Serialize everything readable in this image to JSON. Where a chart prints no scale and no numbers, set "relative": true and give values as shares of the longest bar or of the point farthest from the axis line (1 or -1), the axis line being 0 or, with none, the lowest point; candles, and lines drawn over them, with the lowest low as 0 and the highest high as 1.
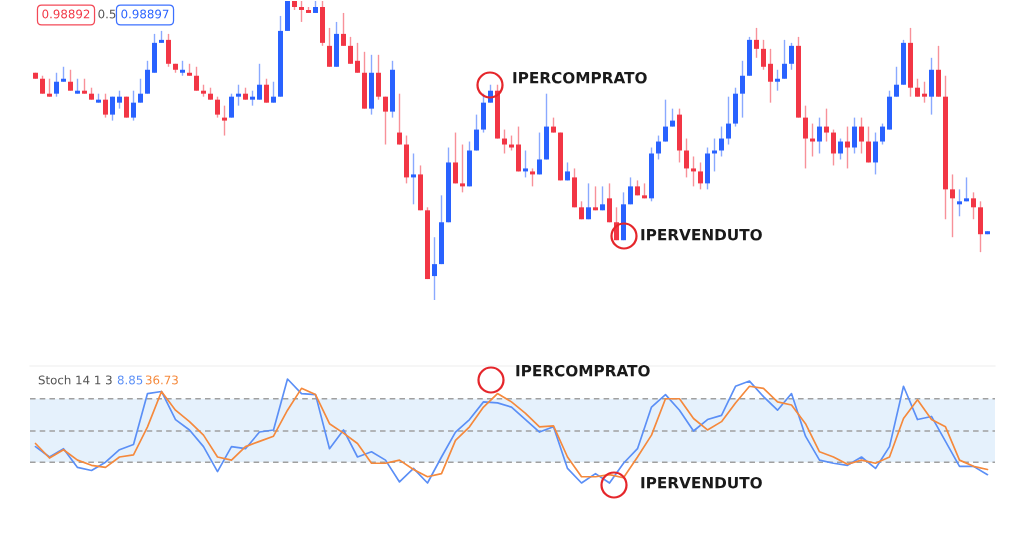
{
  "chart_data": [
    {
      "type": "candlestick",
      "relative": true,
      "tick_labels": false,
      "categories": [
        null,
        null,
        null,
        null,
        null,
        null,
        null,
        null,
        null,
        null,
        null,
        null,
        null,
        null,
        null,
        null,
        null,
        null,
        null,
        null,
        null,
        null,
        null,
        null,
        null,
        null,
        null,
        null,
        null,
        null,
        null,
        null,
        null,
        null,
        null,
        null,
        null,
        null,
        null,
        null,
        null,
        null,
        null,
        null,
        null,
        null,
        null,
        null,
        null,
        null,
        null,
        null,
        null,
        null,
        null,
        null,
        null,
        null,
        null,
        null,
        null,
        null,
        null,
        null,
        null,
        null,
        null,
        null,
        null,
        null,
        null,
        null,
        null,
        null,
        null,
        null,
        null,
        null,
        null,
        null,
        null,
        null,
        null,
        null,
        null,
        null,
        null,
        null,
        null,
        null,
        null,
        null,
        null,
        null,
        null,
        null,
        null,
        null,
        null,
        null,
        null,
        null,
        null,
        null,
        null,
        null,
        null,
        null,
        null,
        null,
        null,
        null,
        null,
        null,
        null,
        null,
        null,
        null,
        null,
        null,
        null,
        null,
        null,
        null,
        null,
        null,
        null,
        null,
        null,
        null,
        null,
        null,
        null,
        null,
        null,
        null,
        null
      ],
      "colors": [
        "#f23645",
        "#f23645",
        "#f23645",
        "#2962ff",
        "#2962ff",
        "#f23645",
        "#2962ff",
        "#f23645",
        "#f23645",
        "#2962ff",
        "#f23645",
        "#2962ff",
        "#2962ff",
        "#f23645",
        "#2962ff",
        "#2962ff",
        "#2962ff",
        "#2962ff",
        "#2962ff",
        "#f23645",
        "#f23645",
        "#2962ff",
        "#f23645",
        "#f23645",
        "#f23645",
        "#f23645",
        "#f23645",
        "#f23645",
        "#2962ff",
        "#2962ff",
        "#f23645",
        "#2962ff",
        "#2962ff",
        "#f23645",
        "#2962ff",
        "#2962ff",
        "#2962ff",
        "#f23645",
        "#f23645",
        "#f23645",
        "#2962ff",
        "#f23645",
        "#f23645",
        "#2962ff",
        "#f23645",
        "#f23645",
        "#f23645",
        "#f23645",
        "#2962ff",
        "#f23645",
        "#f23645",
        "#2962ff",
        "#f23645",
        "#f23645",
        "#2962ff",
        "#f23645",
        "#f23645",
        "#2962ff",
        "#2962ff",
        "#2962ff",
        "#f23645",
        "#f23645",
        "#2962ff",
        "#2962ff",
        "#2962ff",
        "#2962ff",
        "#f23645",
        "#f23645",
        "#f23645",
        "#f23645",
        "#2962ff",
        "#f23645",
        "#2962ff",
        "#2962ff",
        "#f23645",
        "#f23645",
        "#2962ff",
        "#f23645",
        "#f23645",
        "#2962ff",
        "#f23645",
        "#2962ff",
        "#f23645",
        "#f23645",
        "#2962ff",
        "#2962ff",
        "#f23645",
        "#f23645",
        "#2962ff",
        "#2962ff",
        "#2962ff",
        "#2962ff",
        "#f23645",
        "#f23645",
        "#f23645",
        "#f23645",
        "#2962ff",
        "#2962ff",
        "#2962ff",
        "#2962ff",
        "#2962ff",
        "#2962ff",
        "#2962ff",
        "#f23645",
        "#f23645",
        "#f23645",
        "#2962ff",
        "#2962ff",
        "#2962ff",
        "#f23645",
        "#f23645",
        "#f23645",
        "#2962ff",
        "#f23645",
        "#f23645",
        "#2962ff",
        "#f23645",
        "#2962ff",
        "#f23645",
        "#f23645",
        "#2962ff",
        "#2962ff",
        "#2962ff",
        "#2962ff",
        "#2962ff",
        "#f23645",
        "#f23645",
        "#f23645",
        "#2962ff",
        "#f23645",
        "#f23645",
        "#f23645",
        "#2962ff",
        "#2962ff",
        "#f23645",
        "#f23645",
        "#2962ff"
      ],
      "ohlc": [
        [
          0.76,
          0.76,
          0.74,
          0.74
        ],
        [
          0.74,
          0.75,
          0.69,
          0.69
        ],
        [
          0.69,
          0.74,
          0.68,
          0.68
        ],
        [
          0.69,
          0.76,
          0.68,
          0.73
        ],
        [
          0.73,
          0.78,
          0.73,
          0.74
        ],
        [
          0.73,
          0.77,
          0.7,
          0.7
        ],
        [
          0.69,
          0.74,
          0.69,
          0.7
        ],
        [
          0.7,
          0.74,
          0.69,
          0.69
        ],
        [
          0.69,
          0.71,
          0.67,
          0.67
        ],
        [
          0.66,
          0.69,
          0.66,
          0.67
        ],
        [
          0.67,
          0.69,
          0.61,
          0.62
        ],
        [
          0.62,
          0.68,
          0.6,
          0.68
        ],
        [
          0.66,
          0.7,
          0.64,
          0.68
        ],
        [
          0.68,
          0.68,
          0.61,
          0.61
        ],
        [
          0.61,
          0.7,
          0.6,
          0.66
        ],
        [
          0.66,
          0.74,
          0.66,
          0.69
        ],
        [
          0.69,
          0.8,
          0.69,
          0.77
        ],
        [
          0.76,
          0.89,
          0.76,
          0.86
        ],
        [
          0.86,
          0.9,
          0.86,
          0.87
        ],
        [
          0.87,
          0.89,
          0.78,
          0.79
        ],
        [
          0.79,
          0.79,
          0.76,
          0.77
        ],
        [
          0.76,
          0.8,
          0.75,
          0.77
        ],
        [
          0.76,
          0.79,
          0.75,
          0.75
        ],
        [
          0.75,
          0.78,
          0.7,
          0.7
        ],
        [
          0.7,
          0.72,
          0.68,
          0.69
        ],
        [
          0.69,
          0.71,
          0.67,
          0.67
        ],
        [
          0.67,
          0.68,
          0.61,
          0.62
        ],
        [
          0.61,
          0.65,
          0.55,
          0.6
        ],
        [
          0.61,
          0.69,
          0.61,
          0.68
        ],
        [
          0.68,
          0.72,
          0.65,
          0.69
        ],
        [
          0.69,
          0.71,
          0.67,
          0.67
        ],
        [
          0.67,
          0.7,
          0.65,
          0.68
        ],
        [
          0.67,
          0.79,
          0.67,
          0.72
        ],
        [
          0.72,
          0.74,
          0.66,
          0.66
        ],
        [
          0.66,
          0.73,
          0.66,
          0.68
        ],
        [
          0.68,
          0.95,
          0.68,
          0.9
        ],
        [
          0.9,
          1,
          0.9,
          1
        ],
        [
          1,
          1,
          0.97,
          0.98
        ],
        [
          0.98,
          1,
          0.93,
          0.97
        ],
        [
          0.97,
          0.98,
          0.96,
          0.96
        ],
        [
          0.96,
          1,
          0.96,
          0.98
        ],
        [
          0.98,
          1,
          0.85,
          0.86
        ],
        [
          0.85,
          0.91,
          0.78,
          0.78
        ],
        [
          0.78,
          0.93,
          0.78,
          0.89
        ],
        [
          0.89,
          0.96,
          0.85,
          0.85
        ],
        [
          0.85,
          0.88,
          0.79,
          0.79
        ],
        [
          0.8,
          0.86,
          0.76,
          0.76
        ],
        [
          0.76,
          0.83,
          0.64,
          0.64
        ],
        [
          0.64,
          0.82,
          0.62,
          0.76
        ],
        [
          0.76,
          0.82,
          0.67,
          0.68
        ],
        [
          0.68,
          0.68,
          0.52,
          0.63
        ],
        [
          0.63,
          0.8,
          0.61,
          0.77
        ],
        [
          0.56,
          0.69,
          0.52,
          0.52
        ],
        [
          0.52,
          0.55,
          0.39,
          0.41
        ],
        [
          0.41,
          0.49,
          0.32,
          0.42
        ],
        [
          0.42,
          0.45,
          0.3,
          0.3
        ],
        [
          0.3,
          0.31,
          0.07,
          0.07
        ],
        [
          0.08,
          0.21,
          0,
          0.12
        ],
        [
          0.12,
          0.35,
          0.12,
          0.26
        ],
        [
          0.26,
          0.51,
          0.26,
          0.46
        ],
        [
          0.46,
          0.56,
          0.39,
          0.39
        ],
        [
          0.39,
          0.52,
          0.36,
          0.38
        ],
        [
          0.38,
          0.53,
          0.38,
          0.5
        ],
        [
          0.5,
          0.62,
          0.5,
          0.57
        ],
        [
          0.57,
          0.69,
          0.56,
          0.66
        ],
        [
          0.66,
          0.72,
          0.66,
          0.7
        ],
        [
          0.7,
          0.72,
          0.54,
          0.54
        ],
        [
          0.54,
          0.57,
          0.49,
          0.52
        ],
        [
          0.52,
          0.55,
          0.5,
          0.51
        ],
        [
          0.52,
          0.58,
          0.43,
          0.43
        ],
        [
          0.43,
          0.5,
          0.41,
          0.44
        ],
        [
          0.43,
          0.44,
          0.38,
          0.42
        ],
        [
          0.42,
          0.56,
          0.42,
          0.47
        ],
        [
          0.47,
          0.69,
          0.47,
          0.58
        ],
        [
          0.58,
          0.61,
          0.56,
          0.56
        ],
        [
          0.56,
          0.56,
          0.4,
          0.4
        ],
        [
          0.4,
          0.46,
          0.4,
          0.43
        ],
        [
          0.41,
          0.44,
          0.31,
          0.31
        ],
        [
          0.31,
          0.33,
          0.27,
          0.27
        ],
        [
          0.27,
          0.39,
          0.27,
          0.31
        ],
        [
          0.31,
          0.38,
          0.3,
          0.3
        ],
        [
          0.3,
          0.38,
          0.3,
          0.32
        ],
        [
          0.34,
          0.39,
          0.26,
          0.26
        ],
        [
          0.26,
          0.31,
          0.2,
          0.2
        ],
        [
          0.2,
          0.36,
          0.2,
          0.32
        ],
        [
          0.32,
          0.41,
          0.32,
          0.38
        ],
        [
          0.38,
          0.4,
          0.35,
          0.35
        ],
        [
          0.35,
          0.39,
          0.34,
          0.34
        ],
        [
          0.34,
          0.51,
          0.33,
          0.49
        ],
        [
          0.49,
          0.55,
          0.47,
          0.53
        ],
        [
          0.53,
          0.67,
          0.53,
          0.58
        ],
        [
          0.58,
          0.64,
          0.58,
          0.6
        ],
        [
          0.62,
          0.64,
          0.46,
          0.5
        ],
        [
          0.5,
          0.54,
          0.41,
          0.44
        ],
        [
          0.44,
          0.48,
          0.38,
          0.43
        ],
        [
          0.43,
          0.46,
          0.37,
          0.39
        ],
        [
          0.39,
          0.51,
          0.37,
          0.49
        ],
        [
          0.49,
          0.54,
          0.43,
          0.5
        ],
        [
          0.5,
          0.58,
          0.48,
          0.54
        ],
        [
          0.54,
          0.68,
          0.52,
          0.59
        ],
        [
          0.59,
          0.71,
          0.58,
          0.69
        ],
        [
          0.69,
          0.8,
          0.61,
          0.75
        ],
        [
          0.75,
          0.88,
          0.75,
          0.87
        ],
        [
          0.87,
          0.91,
          0.81,
          0.84
        ],
        [
          0.84,
          0.87,
          0.77,
          0.78
        ],
        [
          0.79,
          0.84,
          0.66,
          0.73
        ],
        [
          0.73,
          0.77,
          0.7,
          0.74
        ],
        [
          0.74,
          0.87,
          0.74,
          0.79
        ],
        [
          0.79,
          0.86,
          0.77,
          0.85
        ],
        [
          0.85,
          0.88,
          0.61,
          0.61
        ],
        [
          0.61,
          0.65,
          0.44,
          0.54
        ],
        [
          0.54,
          0.59,
          0.48,
          0.53
        ],
        [
          0.53,
          0.61,
          0.49,
          0.58
        ],
        [
          0.58,
          0.64,
          0.53,
          0.56
        ],
        [
          0.56,
          0.57,
          0.45,
          0.49
        ],
        [
          0.49,
          0.54,
          0.47,
          0.53
        ],
        [
          0.53,
          0.58,
          0.44,
          0.51
        ],
        [
          0.51,
          0.61,
          0.49,
          0.58
        ],
        [
          0.58,
          0.61,
          0.49,
          0.53
        ],
        [
          0.53,
          0.58,
          0.46,
          0.46
        ],
        [
          0.46,
          0.56,
          0.42,
          0.53
        ],
        [
          0.53,
          0.59,
          0.52,
          0.58
        ],
        [
          0.57,
          0.7,
          0.57,
          0.68
        ],
        [
          0.68,
          0.78,
          0.68,
          0.72
        ],
        [
          0.72,
          0.87,
          0.72,
          0.86
        ],
        [
          0.86,
          0.91,
          0.68,
          0.71
        ],
        [
          0.71,
          0.74,
          0.68,
          0.68
        ],
        [
          0.69,
          0.73,
          0.66,
          0.68
        ],
        [
          0.68,
          0.81,
          0.62,
          0.77
        ],
        [
          0.77,
          0.85,
          0.68,
          0.68
        ],
        [
          0.68,
          0.75,
          0.27,
          0.37
        ],
        [
          0.37,
          0.42,
          0.21,
          0.34
        ],
        [
          0.32,
          0.37,
          0.28,
          0.33
        ],
        [
          0.33,
          0.41,
          0.33,
          0.34
        ],
        [
          0.34,
          0.36,
          0.27,
          0.31
        ],
        [
          0.31,
          0.33,
          0.16,
          0.22
        ],
        [
          0.22,
          0.23,
          0.22,
          0.23
        ]
      ],
      "annotations": [
        "0.98892",
        "0.5",
        "0.98897",
        "IPERCOMPRATO",
        "IPERVENDUTO"
      ]
    },
    {
      "type": "line",
      "relative": true,
      "tick_labels": false,
      "title": "Stoch 14 1 3",
      "categories": [
        null,
        null,
        null,
        null,
        null,
        null,
        null,
        null,
        null,
        null,
        null,
        null,
        null,
        null,
        null,
        null,
        null,
        null,
        null,
        null,
        null,
        null,
        null,
        null,
        null,
        null,
        null,
        null,
        null,
        null,
        null,
        null,
        null,
        null,
        null,
        null,
        null,
        null,
        null,
        null,
        null,
        null,
        null,
        null,
        null,
        null,
        null,
        null,
        null,
        null,
        null,
        null,
        null,
        null,
        null,
        null,
        null,
        null,
        null,
        null,
        null,
        null,
        null,
        null,
        null,
        null,
        null,
        null,
        null
      ],
      "series": [
        {
          "name": "8.85",
          "color": "#5b8ff6",
          "values": [
            0.35,
            0.25,
            0.33,
            0.15,
            0.12,
            0.2,
            0.32,
            0.37,
            0.86,
            0.88,
            0.61,
            0.51,
            0.35,
            0.11,
            0.35,
            0.33,
            0.49,
            0.51,
            1.0,
            0.86,
            0.85,
            0.33,
            0.51,
            0.25,
            0.3,
            0.22,
            0.01,
            0.14,
            0,
            0.25,
            0.49,
            0.61,
            0.78,
            0.77,
            0.73,
            0.61,
            0.49,
            0.54,
            0.14,
            0,
            0.09,
            0,
            0.19,
            0.33,
            0.73,
            0.85,
            0.7,
            0.5,
            0.61,
            0.65,
            0.93,
            0.98,
            0.83,
            0.7,
            0.86,
            0.45,
            0.22,
            0.19,
            0.17,
            0.25,
            0.14,
            0.35,
            0.93,
            0.61,
            0.64,
            0.4,
            0.16,
            0.16,
            0.08
          ]
        },
        {
          "name": "36.73",
          "color": "#f5893c",
          "values": [
            0.38,
            0.24,
            0.32,
            0.22,
            0.17,
            0.15,
            0.25,
            0.27,
            0.54,
            0.88,
            0.7,
            0.59,
            0.46,
            0.25,
            0.22,
            0.35,
            0.4,
            0.45,
            0.7,
            0.91,
            0.85,
            0.57,
            0.48,
            0.38,
            0.19,
            0.19,
            0.22,
            0.13,
            0.06,
            0.09,
            0.41,
            0.54,
            0.73,
            0.86,
            0.78,
            0.67,
            0.54,
            0.55,
            0.25,
            0.06,
            0.06,
            0.08,
            0.05,
            0.25,
            0.46,
            0.81,
            0.81,
            0.62,
            0.51,
            0.59,
            0.77,
            0.93,
            0.91,
            0.78,
            0.75,
            0.57,
            0.3,
            0.25,
            0.18,
            0.22,
            0.19,
            0.25,
            0.62,
            0.8,
            0.61,
            0.54,
            0.22,
            0.16,
            0.13
          ]
        }
      ],
      "bands": [
        {
          "axis": "y",
          "from": 0.2,
          "to": 0.81,
          "color": "#e5f1fc"
        }
      ],
      "ref_lines": [
        {
          "axis": "y",
          "value": 0.81,
          "color": "#a0a0a0",
          "line_style": "dashed"
        },
        {
          "axis": "y",
          "value": 0.5,
          "color": "#a0a0a0",
          "line_style": "dashed"
        },
        {
          "axis": "y",
          "value": 0.2,
          "color": "#a0a0a0",
          "line_style": "dashed"
        }
      ],
      "annotations": [
        "IPERCOMPRATO",
        "IPERVENDUTO"
      ]
    }
  ]
}
